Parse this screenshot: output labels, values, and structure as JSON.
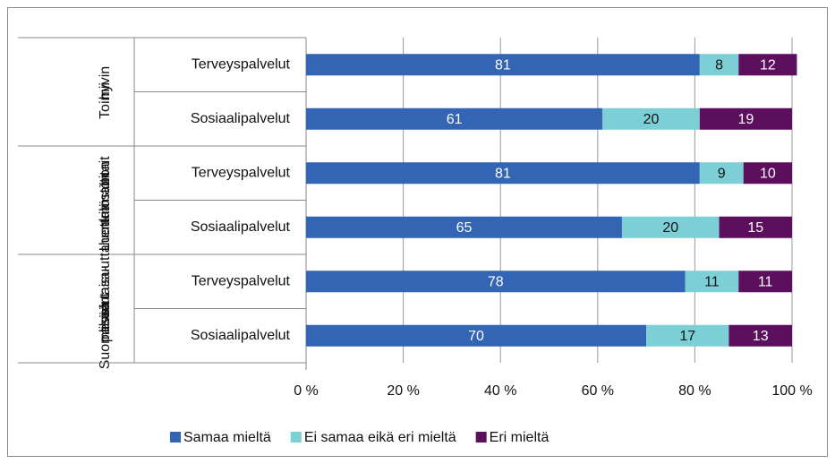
{
  "chart_data": {
    "type": "stacked_barh",
    "groups": [
      {
        "label": [
          "Toimii",
          "hyvin"
        ],
        "categories": [
          "Terveyspalvelut",
          "Sosiaalipalvelut"
        ]
      },
      {
        "label": [
          "Luottaa",
          "henkilöstön",
          "ammattitait",
          "oon"
        ],
        "categories": [
          "Terveyspalvelut",
          "Sosiaalipalvelut"
        ]
      },
      {
        "label": [
          "Suomessa",
          "palvelut",
          "lisää tasa-",
          "vertaisuutta"
        ],
        "categories": [
          "Terveyspalvelut",
          "Sosiaalipalvelut"
        ]
      }
    ],
    "series": [
      {
        "name": "Samaa mieltä",
        "color": "#3464b4",
        "values": [
          81,
          61,
          81,
          65,
          78,
          70
        ]
      },
      {
        "name": "Ei samaa eikä eri mieltä",
        "color": "#7dcfd6",
        "values": [
          8,
          20,
          9,
          20,
          11,
          17
        ]
      },
      {
        "name": "Eri mieltä",
        "color": "#5b0f5d",
        "values": [
          12,
          19,
          10,
          15,
          11,
          13
        ]
      }
    ],
    "xlim": [
      0,
      100
    ],
    "xticks": [
      {
        "value": 0,
        "label": "0 %"
      },
      {
        "value": 20,
        "label": "20 %"
      },
      {
        "value": 40,
        "label": "40 %"
      },
      {
        "value": 60,
        "label": "60 %"
      },
      {
        "value": 80,
        "label": "80 %"
      },
      {
        "value": 100,
        "label": "100 %"
      }
    ],
    "grid": true,
    "legend": "bottom"
  }
}
